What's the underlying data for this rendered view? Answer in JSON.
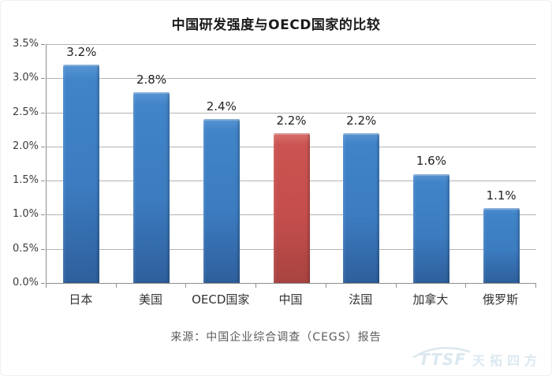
{
  "chart_data": {
    "type": "bar",
    "title": "中国研发强度与OECD国家的比较",
    "categories": [
      "日本",
      "美国",
      "OECD国家",
      "中国",
      "法国",
      "加拿大",
      "俄罗斯"
    ],
    "values": [
      3.2,
      2.8,
      2.4,
      2.2,
      2.2,
      1.6,
      1.1
    ],
    "value_labels": [
      "3.2%",
      "2.8%",
      "2.4%",
      "2.2%",
      "2.2%",
      "1.6%",
      "1.1%"
    ],
    "highlight_index": 3,
    "bar_color": "#3C7CC0",
    "highlight_color": "#C44E4C",
    "ylim": [
      0,
      3.5
    ],
    "ytick_labels": [
      "3.5%",
      "3.0%",
      "2.5%",
      "2.0%",
      "1.5%",
      "1.0%",
      "0.5%",
      "0.0%"
    ],
    "grid": true,
    "legend": "none",
    "xlabel": "",
    "ylabel": "",
    "source": "来源：中国企业综合调查（CEGS）报告"
  },
  "watermark": {
    "latin": "TTSF",
    "cjk": "天拓四方",
    "color": "#dbe8f0"
  }
}
